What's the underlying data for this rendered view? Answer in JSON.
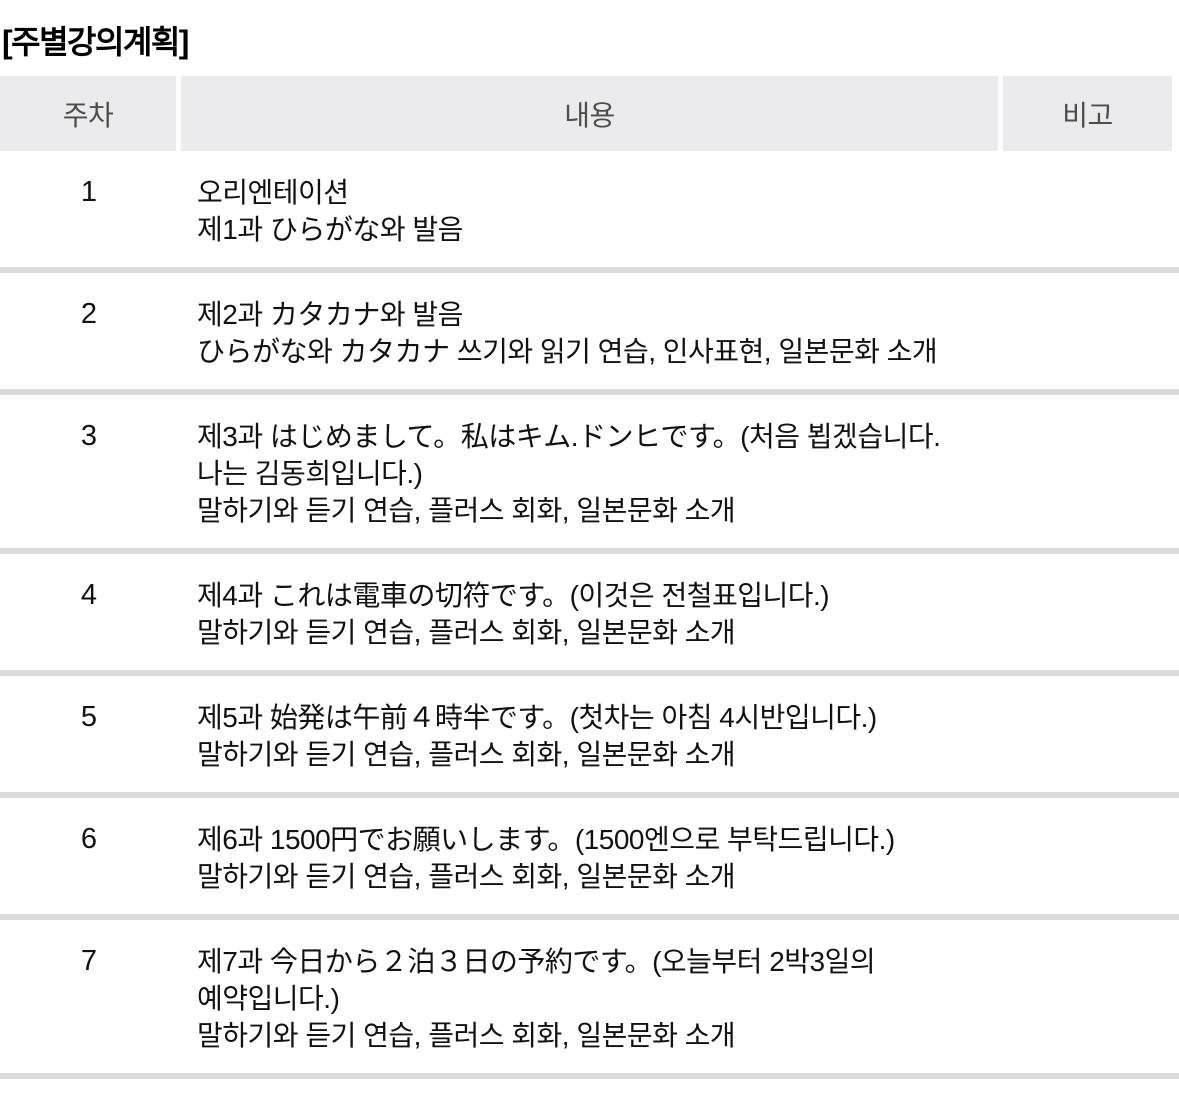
{
  "page": {
    "title": "[주별강의계획]"
  },
  "table": {
    "headers": {
      "week": "주차",
      "content": "내용",
      "note": "비고"
    },
    "rows": [
      {
        "week": "1",
        "content": [
          "오리엔테이션",
          "제1과 ひらがな와 발음"
        ],
        "note": ""
      },
      {
        "week": "2",
        "content": [
          "제2과 カタカナ와 발음",
          "ひらがな와 カタカナ 쓰기와 읽기 연습, 인사표현, 일본문화 소개"
        ],
        "note": ""
      },
      {
        "week": "3",
        "content": [
          "제3과 はじめまして。私はキム.ドンヒです。(처음 뵙겠습니다. 나는 김동희입니다.)",
          "말하기와 듣기 연습, 플러스 회화, 일본문화 소개"
        ],
        "note": ""
      },
      {
        "week": "4",
        "content": [
          "제4과 これは電車の切符です。(이것은 전철표입니다.)",
          "말하기와 듣기 연습, 플러스 회화, 일본문화 소개"
        ],
        "note": ""
      },
      {
        "week": "5",
        "content": [
          "제5과 始発は午前４時半です。(첫차는 아침 4시반입니다.)",
          "말하기와 듣기 연습, 플러스 회화, 일본문화 소개"
        ],
        "note": ""
      },
      {
        "week": "6",
        "content": [
          "제6과 1500円でお願いします。(1500엔으로 부탁드립니다.)",
          "말하기와 듣기 연습, 플러스 회화, 일본문화 소개"
        ],
        "note": ""
      },
      {
        "week": "7",
        "content": [
          "제7과 今日から２泊３日の予約です。(오늘부터 2박3일의 예약입니다.)",
          "말하기와 듣기 연습, 플러스 회화, 일본문화 소개"
        ],
        "note": ""
      }
    ]
  },
  "colors": {
    "header_background": "#ebebed",
    "header_text": "#4d4d4d",
    "body_text": "#111111",
    "divider": "#dbdbdb",
    "page_background": "#ffffff"
  }
}
